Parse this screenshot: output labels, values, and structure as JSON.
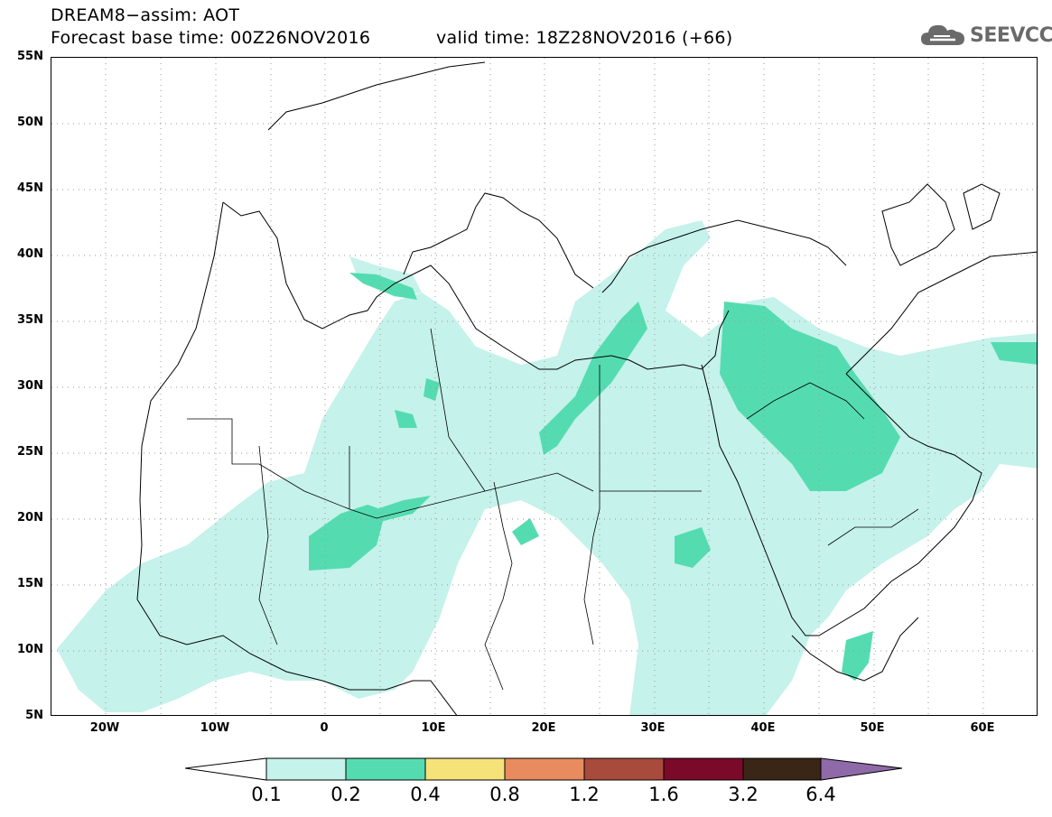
{
  "header": {
    "title": "DREAM8−assim: AOT",
    "base_time": "Forecast base time: 00Z26NOV2016",
    "valid_time": "valid time: 18Z28NOV2016 (+66)"
  },
  "logo": {
    "text": "SEEVCCC",
    "icon": "cloud-icon"
  },
  "map": {
    "variable": "AOT",
    "lat_labels": [
      "55N",
      "50N",
      "45N",
      "40N",
      "35N",
      "30N",
      "25N",
      "20N",
      "15N",
      "10N",
      "5N"
    ],
    "lon_labels": [
      "20W",
      "10W",
      "0",
      "10E",
      "20E",
      "30E",
      "40E",
      "50E",
      "60E"
    ],
    "lat_range": [
      5,
      55
    ],
    "lon_range": [
      -25,
      65
    ],
    "grid": true
  },
  "colorbar": {
    "levels": [
      "0.1",
      "0.2",
      "0.4",
      "0.8",
      "1.2",
      "1.6",
      "3.2",
      "6.4"
    ],
    "colors": [
      "#ffffff",
      "#c5f2ea",
      "#54dcb0",
      "#f5e37a",
      "#e88b5e",
      "#a84a3c",
      "#7b0a2a",
      "#3a2616",
      "#8f6aa8"
    ]
  }
}
